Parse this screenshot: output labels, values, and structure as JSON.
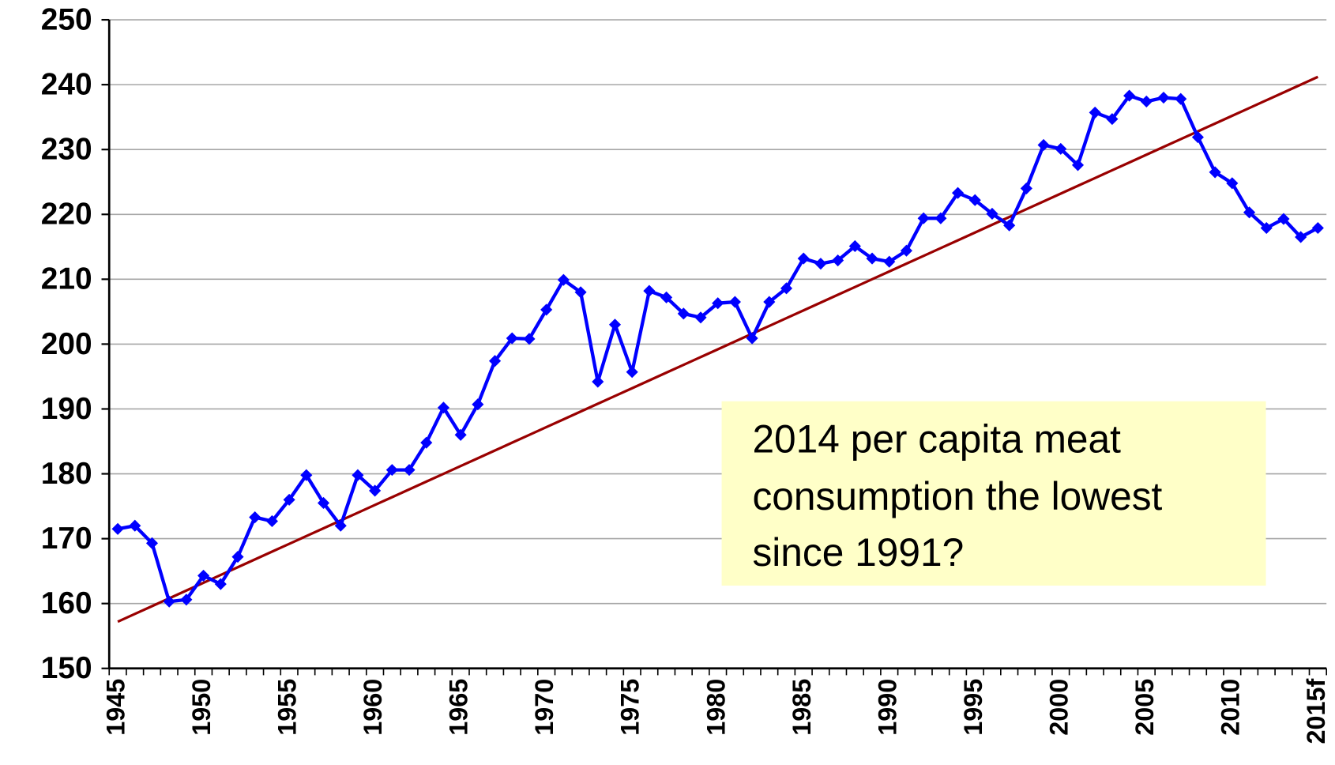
{
  "chart_data": {
    "type": "line",
    "categories": [
      "1945",
      null,
      null,
      null,
      null,
      "1950",
      null,
      null,
      null,
      null,
      "1955",
      null,
      null,
      null,
      null,
      "1960",
      null,
      null,
      null,
      null,
      "1965",
      null,
      null,
      null,
      null,
      "1970",
      null,
      null,
      null,
      null,
      "1975",
      null,
      null,
      null,
      null,
      "1980",
      null,
      null,
      null,
      null,
      "1985",
      null,
      null,
      null,
      null,
      "1990",
      null,
      null,
      null,
      null,
      "1995",
      null,
      null,
      null,
      null,
      "2000",
      null,
      null,
      null,
      null,
      "2005",
      null,
      null,
      null,
      null,
      "2010",
      null,
      null,
      null,
      null,
      "2015f"
    ],
    "series": [
      {
        "color": "#0000ff",
        "markers": true,
        "values": [
          171.5,
          172,
          169.3,
          160.3,
          160.6,
          164.3,
          163,
          167.2,
          173.3,
          172.7,
          176,
          179.8,
          175.5,
          172,
          179.8,
          177.4,
          180.6,
          180.6,
          184.8,
          190.2,
          186,
          190.7,
          197.4,
          200.9,
          200.8,
          205.3,
          209.9,
          208,
          194.2,
          203,
          195.7,
          208.2,
          207.2,
          204.7,
          204.1,
          206.3,
          206.5,
          200.9,
          206.5,
          208.6,
          213.2,
          212.4,
          212.9,
          215.1,
          213.2,
          212.7,
          214.4,
          219.4,
          219.4,
          223.3,
          222.2,
          220.1,
          218.3,
          224,
          230.7,
          230.1,
          227.6,
          235.7,
          234.7,
          238.3,
          237.4,
          238,
          237.8,
          231.9,
          226.5,
          224.8,
          220.3,
          217.9,
          219.3,
          216.5,
          217.9
        ]
      },
      {
        "color": "#990000",
        "markers": false,
        "values": [
          157.2,
          158.4,
          159.6,
          160.8,
          162,
          163.2,
          164.4,
          165.6,
          166.8,
          168,
          169.2,
          170.4,
          171.6,
          172.8,
          174,
          175.2,
          176.4,
          177.6,
          178.8,
          180,
          181.2,
          182.4,
          183.6,
          184.8,
          186,
          187.2,
          188.4,
          189.6,
          190.8,
          192,
          193.2,
          194.4,
          195.6,
          196.8,
          198,
          199.2,
          200.4,
          201.6,
          202.8,
          204,
          205.2,
          206.4,
          207.6,
          208.8,
          210,
          211.2,
          212.4,
          213.6,
          214.8,
          216,
          217.2,
          218.4,
          219.6,
          220.8,
          222,
          223.2,
          224.4,
          225.6,
          226.8,
          228,
          229.2,
          230.4,
          231.6,
          232.8,
          234,
          235.2,
          236.4,
          237.6,
          238.8,
          240,
          241.2
        ]
      }
    ],
    "ylim": [
      150,
      250
    ],
    "yticks": [
      150,
      160,
      170,
      180,
      190,
      200,
      210,
      220,
      230,
      240,
      250
    ],
    "grid": true,
    "annotation": [
      "2014 per capita meat",
      "consumption the lowest",
      "since 1991?"
    ]
  }
}
